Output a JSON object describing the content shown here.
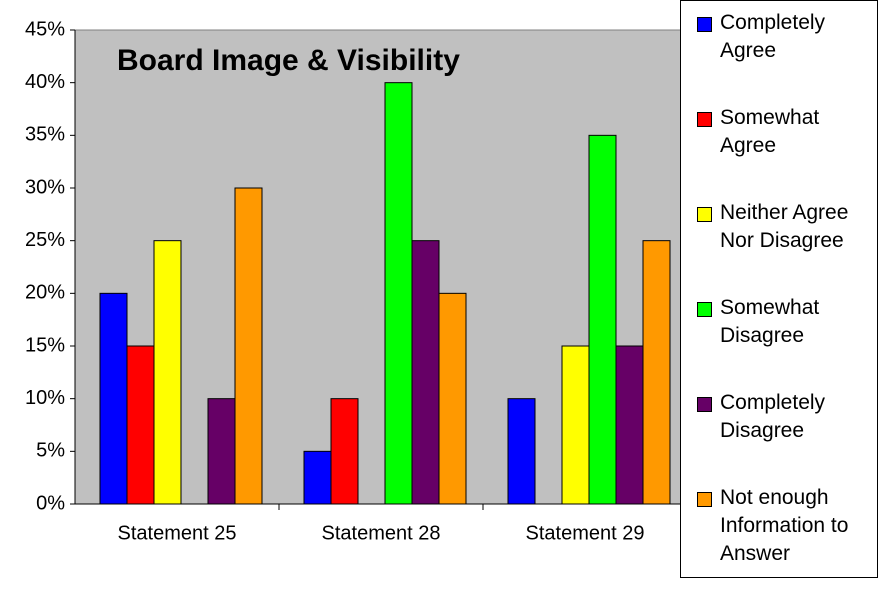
{
  "chart_data": {
    "type": "bar",
    "title": "Board Image & Visibility",
    "categories": [
      "Statement 25",
      "Statement 28",
      "Statement 29"
    ],
    "series": [
      {
        "name": "Completely Agree",
        "color": "#0000ff",
        "values": [
          20,
          5,
          10
        ]
      },
      {
        "name": "Somewhat Agree",
        "color": "#ff0000",
        "values": [
          15,
          10,
          0
        ]
      },
      {
        "name": "Neither Agree Nor Disagree",
        "color": "#ffff00",
        "values": [
          25,
          0,
          15
        ]
      },
      {
        "name": "Somewhat Disagree",
        "color": "#00ff00",
        "values": [
          0,
          40,
          35
        ]
      },
      {
        "name": "Completely Disagree",
        "color": "#660066",
        "values": [
          10,
          25,
          15
        ]
      },
      {
        "name": "Not enough Information to Answer",
        "color": "#ff9900",
        "values": [
          30,
          20,
          25
        ]
      }
    ],
    "ylim": [
      0,
      45
    ],
    "yticks": [
      {
        "value": 0,
        "label": "0%"
      },
      {
        "value": 5,
        "label": "5%"
      },
      {
        "value": 10,
        "label": "10%"
      },
      {
        "value": 15,
        "label": "15%"
      },
      {
        "value": 20,
        "label": "20%"
      },
      {
        "value": 25,
        "label": "25%"
      },
      {
        "value": 30,
        "label": "30%"
      },
      {
        "value": 35,
        "label": "35%"
      },
      {
        "value": 40,
        "label": "40%"
      },
      {
        "value": 45,
        "label": "45%"
      }
    ],
    "grid": false,
    "legend": "right",
    "plot_background": "#c0c0c0"
  }
}
